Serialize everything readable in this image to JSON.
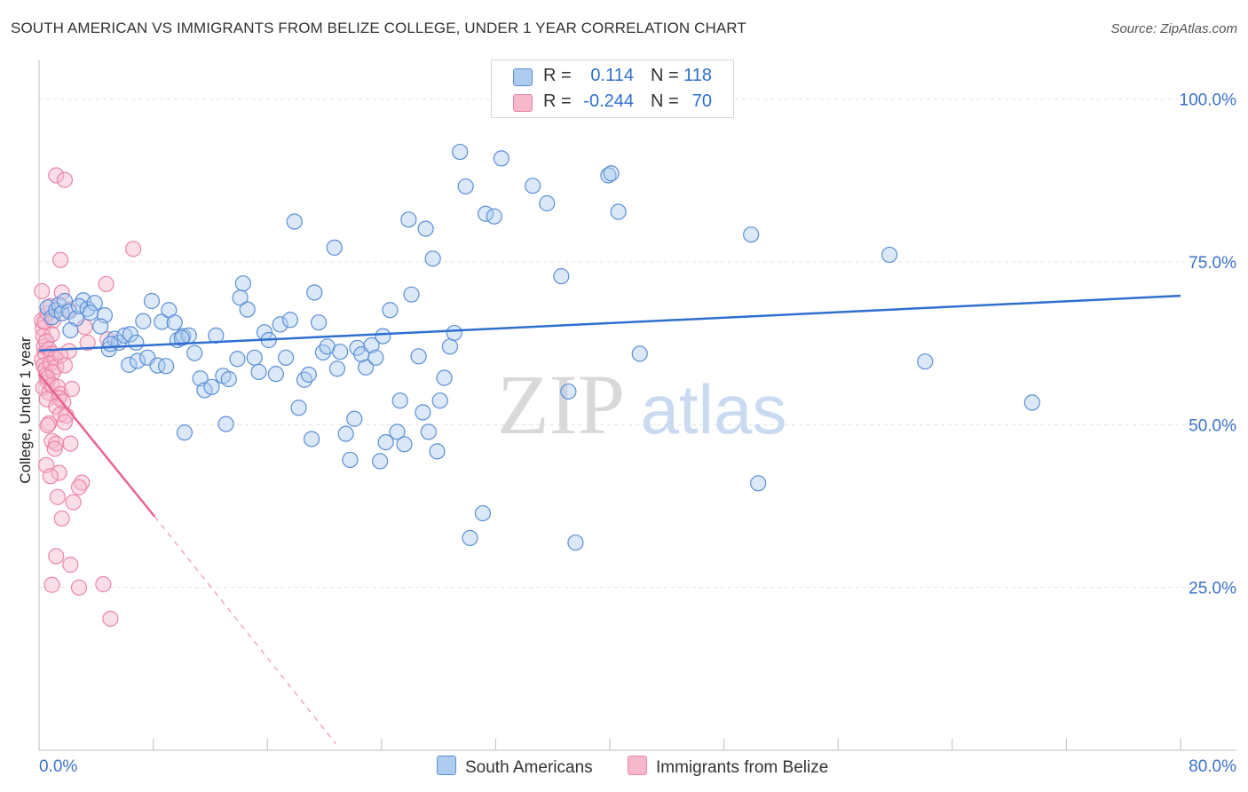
{
  "title": "SOUTH AMERICAN VS IMMIGRANTS FROM BELIZE COLLEGE, UNDER 1 YEAR CORRELATION CHART",
  "source": "Source: ZipAtlas.com",
  "watermark": {
    "zip": "ZIP",
    "atlas": "atlas"
  },
  "colors": {
    "blue_fill": "#aecbf0",
    "blue_stroke": "#5b8fd6",
    "blue_line": "#2f6fd0",
    "pink_fill": "#f7b8cb",
    "pink_stroke": "#ea86a6",
    "pink_line": "#e8628f",
    "tick_label": "#3b73c8",
    "grid": "#e3e3e3"
  },
  "legend": {
    "rows": [
      {
        "r_label": "R =",
        "r_value": "0.114",
        "n_label": "N =",
        "n_value": "118"
      },
      {
        "r_label": "R =",
        "r_value": "-0.244",
        "n_label": "N =",
        "n_value": "70"
      }
    ]
  },
  "bottom_legend": {
    "south": "South Americans",
    "belize": "Immigrants from Belize"
  },
  "chart_data": {
    "type": "scatter",
    "title": "SOUTH AMERICAN VS IMMIGRANTS FROM BELIZE COLLEGE, UNDER 1 YEAR CORRELATION CHART",
    "xlabel": "",
    "ylabel": "College, Under 1 year",
    "xlim": [
      0,
      80
    ],
    "ylim": [
      0,
      105
    ],
    "x_tick_labels": {
      "left": "0.0%",
      "right": "80.0%"
    },
    "y_ticks": [
      {
        "value": 25,
        "label": "25.0%"
      },
      {
        "value": 50,
        "label": "50.0%"
      },
      {
        "value": 75,
        "label": "75.0%"
      },
      {
        "value": 100,
        "label": "100.0%"
      }
    ],
    "grid": true,
    "series": [
      {
        "name": "South Americans",
        "color": "#5b8fd6",
        "r": 0.114,
        "n": 118,
        "trend": {
          "x0": 0,
          "y0": 61.4,
          "x1": 80,
          "y1": 69.8
        },
        "points": [
          [
            0.6,
            68.0
          ],
          [
            0.9,
            66.5
          ],
          [
            1.2,
            67.6
          ],
          [
            1.4,
            68.4
          ],
          [
            1.6,
            67.1
          ],
          [
            1.8,
            69.0
          ],
          [
            2.1,
            67.4
          ],
          [
            2.6,
            66.3
          ],
          [
            3.1,
            69.1
          ],
          [
            2.8,
            68.2
          ],
          [
            3.4,
            67.8
          ],
          [
            3.9,
            68.7
          ],
          [
            4.6,
            66.8
          ],
          [
            4.3,
            65.1
          ],
          [
            3.6,
            67.2
          ],
          [
            4.9,
            61.6
          ],
          [
            5.3,
            63.2
          ],
          [
            5.6,
            62.6
          ],
          [
            6.0,
            63.7
          ],
          [
            6.4,
            63.9
          ],
          [
            6.3,
            59.2
          ],
          [
            6.8,
            62.6
          ],
          [
            6.9,
            59.8
          ],
          [
            7.6,
            60.3
          ],
          [
            7.3,
            65.9
          ],
          [
            7.9,
            69.0
          ],
          [
            8.3,
            59.1
          ],
          [
            8.6,
            65.8
          ],
          [
            8.9,
            59.0
          ],
          [
            9.1,
            67.6
          ],
          [
            9.5,
            65.7
          ],
          [
            9.7,
            63.0
          ],
          [
            10.1,
            63.6
          ],
          [
            10.5,
            63.7
          ],
          [
            10.9,
            61.0
          ],
          [
            10.2,
            48.8
          ],
          [
            11.3,
            57.1
          ],
          [
            11.6,
            55.3
          ],
          [
            12.1,
            55.8
          ],
          [
            12.4,
            63.7
          ],
          [
            12.9,
            57.5
          ],
          [
            13.3,
            57.0
          ],
          [
            13.1,
            50.1
          ],
          [
            13.9,
            60.1
          ],
          [
            14.3,
            71.7
          ],
          [
            14.1,
            69.5
          ],
          [
            14.6,
            67.7
          ],
          [
            15.1,
            60.3
          ],
          [
            15.4,
            58.1
          ],
          [
            15.8,
            64.2
          ],
          [
            16.1,
            63.0
          ],
          [
            16.6,
            57.8
          ],
          [
            16.9,
            65.4
          ],
          [
            17.3,
            60.3
          ],
          [
            17.6,
            66.1
          ],
          [
            17.9,
            81.2
          ],
          [
            18.2,
            52.6
          ],
          [
            18.6,
            56.9
          ],
          [
            18.9,
            57.7
          ],
          [
            19.1,
            47.8
          ],
          [
            19.3,
            70.3
          ],
          [
            19.6,
            65.7
          ],
          [
            19.9,
            61.1
          ],
          [
            20.2,
            62.0
          ],
          [
            20.7,
            77.2
          ],
          [
            20.9,
            58.6
          ],
          [
            21.1,
            61.2
          ],
          [
            21.5,
            48.6
          ],
          [
            21.8,
            44.6
          ],
          [
            22.1,
            50.9
          ],
          [
            22.3,
            61.8
          ],
          [
            22.6,
            60.8
          ],
          [
            22.9,
            58.8
          ],
          [
            23.3,
            62.2
          ],
          [
            23.6,
            60.3
          ],
          [
            23.9,
            44.4
          ],
          [
            24.1,
            63.6
          ],
          [
            24.3,
            47.3
          ],
          [
            24.6,
            67.6
          ],
          [
            25.1,
            48.9
          ],
          [
            25.3,
            53.7
          ],
          [
            25.6,
            47.0
          ],
          [
            25.9,
            81.5
          ],
          [
            26.1,
            70.0
          ],
          [
            26.6,
            60.5
          ],
          [
            26.9,
            51.9
          ],
          [
            27.1,
            80.1
          ],
          [
            27.3,
            48.9
          ],
          [
            27.6,
            75.5
          ],
          [
            27.9,
            45.9
          ],
          [
            28.1,
            53.7
          ],
          [
            28.4,
            57.2
          ],
          [
            28.8,
            62.0
          ],
          [
            29.1,
            64.1
          ],
          [
            29.5,
            91.9
          ],
          [
            29.9,
            86.6
          ],
          [
            30.2,
            32.6
          ],
          [
            31.1,
            36.4
          ],
          [
            31.3,
            82.4
          ],
          [
            31.9,
            82.0
          ],
          [
            32.4,
            90.9
          ],
          [
            34.6,
            86.7
          ],
          [
            35.6,
            84.0
          ],
          [
            36.6,
            72.8
          ],
          [
            37.1,
            55.1
          ],
          [
            37.6,
            31.9
          ],
          [
            39.9,
            88.3
          ],
          [
            40.1,
            88.6
          ],
          [
            40.6,
            82.7
          ],
          [
            42.1,
            60.9
          ],
          [
            49.9,
            79.2
          ],
          [
            50.4,
            41.0
          ],
          [
            59.6,
            76.1
          ],
          [
            62.1,
            59.7
          ],
          [
            69.6,
            53.4
          ],
          [
            10.0,
            63.3
          ],
          [
            5.0,
            62.4
          ],
          [
            2.2,
            64.5
          ]
        ]
      },
      {
        "name": "Immigrants from Belize",
        "color": "#ea86a6",
        "r": -0.244,
        "n": 70,
        "trend": {
          "x0": 0,
          "y0": 57.8,
          "x1": 8.1,
          "y1": 35.9
        },
        "trend_dashed": {
          "x0": 8.1,
          "y0": 35.9,
          "x1": 20.8,
          "y1": 1.0
        },
        "points": [
          [
            0.2,
            66.0
          ],
          [
            0.25,
            64.8
          ],
          [
            0.3,
            63.6
          ],
          [
            0.35,
            62.0
          ],
          [
            0.4,
            61.0
          ],
          [
            0.2,
            60.0
          ],
          [
            0.3,
            59.1
          ],
          [
            0.45,
            58.5
          ],
          [
            0.5,
            57.6
          ],
          [
            0.6,
            56.6
          ],
          [
            0.3,
            55.7
          ],
          [
            0.7,
            54.9
          ],
          [
            0.55,
            53.9
          ],
          [
            0.4,
            65.8
          ],
          [
            0.2,
            70.5
          ],
          [
            0.6,
            67.1
          ],
          [
            0.8,
            68.2
          ],
          [
            1.0,
            66.0
          ],
          [
            0.9,
            63.9
          ],
          [
            0.5,
            62.8
          ],
          [
            0.7,
            61.6
          ],
          [
            0.9,
            60.9
          ],
          [
            1.1,
            60.2
          ],
          [
            0.8,
            59.4
          ],
          [
            1.2,
            58.9
          ],
          [
            1.0,
            58.1
          ],
          [
            0.6,
            57.2
          ],
          [
            0.9,
            56.1
          ],
          [
            1.3,
            55.8
          ],
          [
            1.5,
            54.7
          ],
          [
            1.4,
            54.1
          ],
          [
            1.7,
            53.5
          ],
          [
            1.2,
            52.8
          ],
          [
            1.5,
            51.6
          ],
          [
            1.9,
            51.4
          ],
          [
            0.7,
            50.2
          ],
          [
            0.6,
            49.9
          ],
          [
            1.8,
            50.4
          ],
          [
            0.9,
            47.5
          ],
          [
            1.2,
            47.1
          ],
          [
            2.2,
            47.1
          ],
          [
            1.1,
            46.3
          ],
          [
            0.5,
            43.8
          ],
          [
            1.4,
            42.6
          ],
          [
            0.8,
            42.1
          ],
          [
            3.0,
            41.1
          ],
          [
            2.8,
            40.4
          ],
          [
            1.3,
            38.9
          ],
          [
            2.4,
            38.1
          ],
          [
            1.6,
            35.6
          ],
          [
            1.2,
            29.8
          ],
          [
            2.2,
            28.5
          ],
          [
            0.9,
            25.4
          ],
          [
            2.8,
            25.0
          ],
          [
            4.5,
            25.5
          ],
          [
            5.0,
            20.2
          ],
          [
            1.2,
            88.3
          ],
          [
            1.8,
            87.6
          ],
          [
            1.5,
            75.3
          ],
          [
            6.6,
            77.0
          ],
          [
            4.7,
            71.6
          ],
          [
            1.6,
            70.3
          ],
          [
            2.1,
            67.7
          ],
          [
            3.2,
            65.0
          ],
          [
            4.8,
            63.1
          ],
          [
            3.4,
            62.6
          ],
          [
            2.1,
            61.3
          ],
          [
            1.5,
            60.6
          ],
          [
            1.8,
            59.1
          ],
          [
            2.3,
            55.5
          ]
        ]
      }
    ]
  }
}
